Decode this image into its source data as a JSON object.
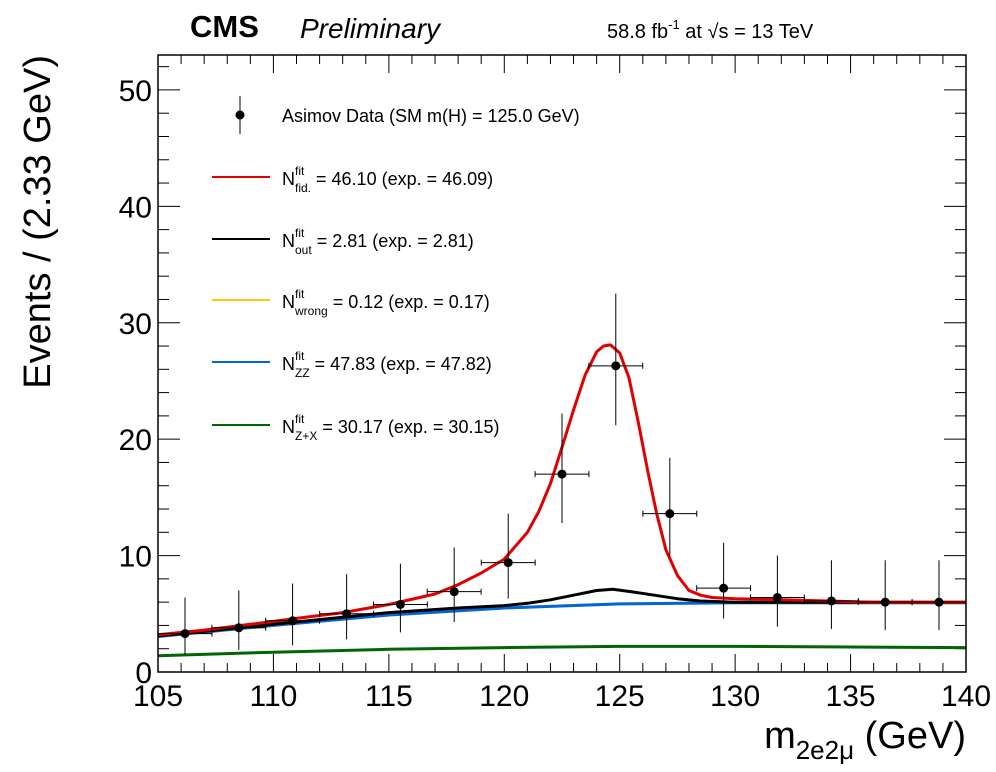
{
  "header": {
    "experiment": "CMS",
    "status": "Preliminary",
    "lumi_value": "58.8 fb",
    "lumi_exp": "-1",
    "lumi_at": " at ",
    "sqrt_s": "√s",
    "energy": " = 13 TeV"
  },
  "chart_data": {
    "type": "line",
    "xlabel_main": "m",
    "xlabel_sub": "2e2μ",
    "xlabel_unit": " (GeV)",
    "ylabel": "Events / (2.33 GeV)",
    "xlim": [
      105,
      140
    ],
    "ylim": [
      0,
      53
    ],
    "x_ticks": [
      105,
      110,
      115,
      120,
      125,
      130,
      135,
      140
    ],
    "y_ticks": [
      0,
      10,
      20,
      30,
      40,
      50
    ],
    "legend_position": "top-left",
    "data_points": {
      "name": "Asimov Data (SM m(H) = 125.0 GeV)",
      "x": [
        106.17,
        108.5,
        110.83,
        113.17,
        115.5,
        117.83,
        120.17,
        122.5,
        124.83,
        127.17,
        129.5,
        131.83,
        134.17,
        136.5,
        138.83
      ],
      "y": [
        3.3,
        3.8,
        4.4,
        5.0,
        5.8,
        6.9,
        9.4,
        17.0,
        26.3,
        13.6,
        7.2,
        6.4,
        6.1,
        6.0,
        6.0
      ],
      "err_low": [
        1.8,
        1.9,
        2.1,
        2.2,
        2.4,
        2.6,
        3.1,
        4.2,
        5.1,
        3.7,
        2.6,
        2.5,
        2.4,
        2.4,
        2.4
      ],
      "err_high": [
        3.1,
        3.2,
        3.2,
        3.4,
        3.5,
        3.8,
        4.2,
        5.2,
        6.2,
        4.8,
        3.9,
        3.6,
        3.5,
        3.6,
        3.6
      ],
      "x_half_width": 1.1667
    },
    "series": [
      {
        "key": "fid",
        "label_N": "N",
        "label_sup": "fit",
        "label_sub": "fid.",
        "label_text": " = 46.10 (exp. = 46.09)",
        "color": "#e00000",
        "x": [
          105,
          107,
          109,
          111,
          113,
          115,
          117,
          118,
          119,
          120,
          121,
          121.5,
          122,
          122.5,
          123,
          123.5,
          124,
          124.3,
          124.6,
          125,
          125.4,
          125.8,
          126.2,
          126.6,
          127,
          127.5,
          128,
          128.5,
          129,
          130,
          132,
          134,
          136,
          138,
          140
        ],
        "y": [
          3.2,
          3.6,
          4.1,
          4.6,
          5.1,
          5.8,
          6.7,
          7.5,
          8.5,
          9.7,
          12.0,
          13.8,
          16.2,
          19.3,
          22.5,
          25.5,
          27.5,
          28.0,
          28.1,
          27.4,
          25.3,
          21.5,
          17.4,
          13.6,
          10.5,
          8.3,
          7.0,
          6.6,
          6.4,
          6.3,
          6.2,
          6.1,
          6.0,
          6.0,
          6.0
        ]
      },
      {
        "key": "out",
        "label_N": "N",
        "label_sup": "fit",
        "label_sub": "out",
        "label_text": " = 2.81 (exp. = 2.81)",
        "color": "#000000",
        "x": [
          105,
          110,
          115,
          118,
          120,
          121,
          122,
          123,
          124,
          124.7,
          125.5,
          126.5,
          127.5,
          128.5,
          130,
          135,
          140
        ],
        "y": [
          3.1,
          4.1,
          5.1,
          5.5,
          5.7,
          5.9,
          6.2,
          6.6,
          7.0,
          7.1,
          6.9,
          6.6,
          6.3,
          6.1,
          6.0,
          6.0,
          6.0
        ]
      },
      {
        "key": "wrong",
        "label_N": "N",
        "label_sup": "fit",
        "label_sub": "wrong",
        "label_text": " = 0.12 (exp. = 0.17)",
        "color": "#ffcc00",
        "x": [
          105,
          110,
          115,
          120,
          125,
          130,
          135,
          140
        ],
        "y": [
          3.05,
          4.0,
          4.9,
          5.5,
          5.85,
          5.95,
          5.95,
          5.95
        ]
      },
      {
        "key": "zz",
        "label_N": "N",
        "label_sup": "fit",
        "label_sub": "ZZ",
        "label_text": " = 47.83 (exp. = 47.82)",
        "color": "#0066dd",
        "x": [
          105,
          110,
          115,
          120,
          125,
          130,
          135,
          140
        ],
        "y": [
          3.05,
          4.0,
          4.9,
          5.5,
          5.85,
          5.95,
          5.95,
          5.95
        ]
      },
      {
        "key": "zx",
        "label_N": "N",
        "label_sup": "fit",
        "label_sub": "Z+X",
        "label_text": " = 30.17 (exp. = 30.15)",
        "color": "#006600",
        "x": [
          105,
          110,
          115,
          120,
          125,
          130,
          135,
          140
        ],
        "y": [
          1.4,
          1.7,
          1.95,
          2.1,
          2.2,
          2.2,
          2.15,
          2.1
        ]
      }
    ]
  }
}
